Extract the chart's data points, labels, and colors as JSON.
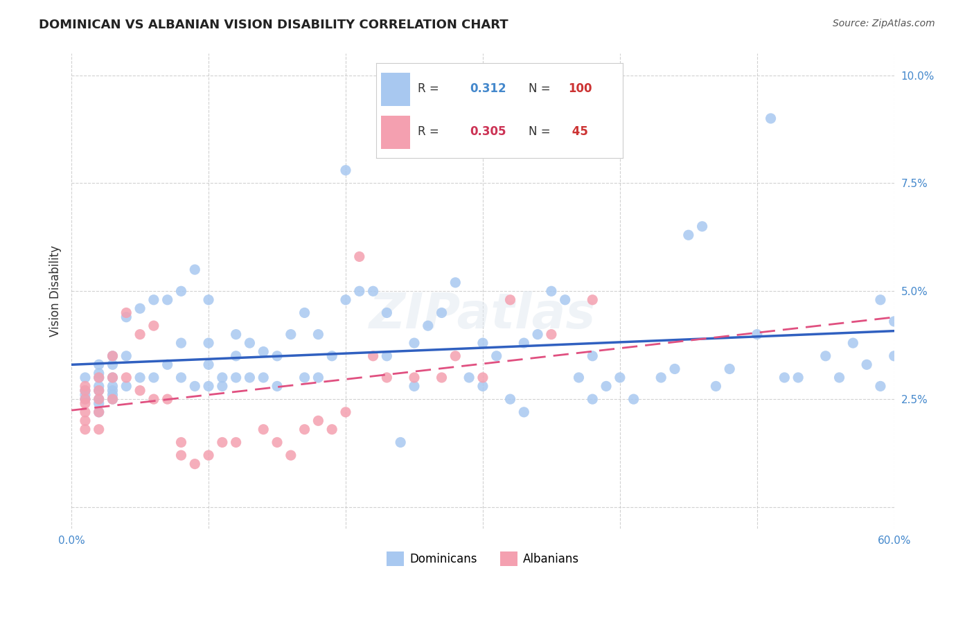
{
  "title": "DOMINICAN VS ALBANIAN VISION DISABILITY CORRELATION CHART",
  "source": "Source: ZipAtlas.com",
  "ylabel": "Vision Disability",
  "xlabel": "",
  "xlim": [
    0.0,
    0.6
  ],
  "ylim": [
    -0.005,
    0.105
  ],
  "yticks": [
    0.0,
    0.025,
    0.05,
    0.075,
    0.1
  ],
  "ytick_labels": [
    "",
    "2.5%",
    "5.0%",
    "7.5%",
    "10.0%"
  ],
  "xticks": [
    0.0,
    0.1,
    0.2,
    0.3,
    0.4,
    0.5,
    0.6
  ],
  "xtick_labels": [
    "0.0%",
    "",
    "",
    "",
    "",
    "",
    "60.0%"
  ],
  "dominican_color": "#a8c8f0",
  "albanian_color": "#f4a0b0",
  "trend_dominican_color": "#3060c0",
  "trend_albanian_color": "#e05080",
  "background_color": "#ffffff",
  "grid_color": "#cccccc",
  "R_dominican": "0.312",
  "N_dominican": "100",
  "R_albanian": "0.305",
  "N_albanian": "45",
  "dominican_x": [
    0.01,
    0.01,
    0.01,
    0.01,
    0.02,
    0.02,
    0.02,
    0.02,
    0.02,
    0.02,
    0.02,
    0.02,
    0.03,
    0.03,
    0.03,
    0.03,
    0.03,
    0.03,
    0.03,
    0.04,
    0.04,
    0.04,
    0.05,
    0.05,
    0.06,
    0.06,
    0.07,
    0.07,
    0.08,
    0.08,
    0.08,
    0.09,
    0.09,
    0.1,
    0.1,
    0.1,
    0.1,
    0.11,
    0.11,
    0.12,
    0.12,
    0.12,
    0.13,
    0.13,
    0.14,
    0.14,
    0.15,
    0.15,
    0.16,
    0.17,
    0.17,
    0.18,
    0.18,
    0.19,
    0.2,
    0.2,
    0.21,
    0.22,
    0.23,
    0.23,
    0.24,
    0.25,
    0.25,
    0.26,
    0.27,
    0.28,
    0.29,
    0.3,
    0.3,
    0.31,
    0.32,
    0.33,
    0.33,
    0.34,
    0.35,
    0.36,
    0.37,
    0.38,
    0.38,
    0.39,
    0.4,
    0.41,
    0.43,
    0.44,
    0.45,
    0.46,
    0.47,
    0.48,
    0.5,
    0.51,
    0.52,
    0.53,
    0.55,
    0.56,
    0.57,
    0.58,
    0.59,
    0.59,
    0.6,
    0.6
  ],
  "dominican_y": [
    0.03,
    0.027,
    0.026,
    0.025,
    0.033,
    0.031,
    0.03,
    0.028,
    0.027,
    0.025,
    0.024,
    0.022,
    0.035,
    0.033,
    0.03,
    0.028,
    0.027,
    0.026,
    0.025,
    0.044,
    0.035,
    0.028,
    0.046,
    0.03,
    0.048,
    0.03,
    0.048,
    0.033,
    0.05,
    0.038,
    0.03,
    0.055,
    0.028,
    0.048,
    0.038,
    0.033,
    0.028,
    0.03,
    0.028,
    0.04,
    0.035,
    0.03,
    0.038,
    0.03,
    0.036,
    0.03,
    0.035,
    0.028,
    0.04,
    0.045,
    0.03,
    0.04,
    0.03,
    0.035,
    0.078,
    0.048,
    0.05,
    0.05,
    0.045,
    0.035,
    0.015,
    0.038,
    0.028,
    0.042,
    0.045,
    0.052,
    0.03,
    0.038,
    0.028,
    0.035,
    0.025,
    0.022,
    0.038,
    0.04,
    0.05,
    0.048,
    0.03,
    0.035,
    0.025,
    0.028,
    0.03,
    0.025,
    0.03,
    0.032,
    0.063,
    0.065,
    0.028,
    0.032,
    0.04,
    0.09,
    0.03,
    0.03,
    0.035,
    0.03,
    0.038,
    0.033,
    0.028,
    0.048,
    0.035,
    0.043
  ],
  "albanian_x": [
    0.01,
    0.01,
    0.01,
    0.01,
    0.01,
    0.01,
    0.01,
    0.02,
    0.02,
    0.02,
    0.02,
    0.02,
    0.03,
    0.03,
    0.03,
    0.04,
    0.04,
    0.05,
    0.05,
    0.06,
    0.06,
    0.07,
    0.08,
    0.08,
    0.09,
    0.1,
    0.11,
    0.12,
    0.14,
    0.15,
    0.16,
    0.17,
    0.18,
    0.19,
    0.2,
    0.21,
    0.22,
    0.23,
    0.25,
    0.27,
    0.28,
    0.3,
    0.32,
    0.35,
    0.38
  ],
  "albanian_y": [
    0.02,
    0.022,
    0.025,
    0.027,
    0.028,
    0.024,
    0.018,
    0.03,
    0.027,
    0.025,
    0.022,
    0.018,
    0.035,
    0.03,
    0.025,
    0.045,
    0.03,
    0.04,
    0.027,
    0.042,
    0.025,
    0.025,
    0.015,
    0.012,
    0.01,
    0.012,
    0.015,
    0.015,
    0.018,
    0.015,
    0.012,
    0.018,
    0.02,
    0.018,
    0.022,
    0.058,
    0.035,
    0.03,
    0.03,
    0.03,
    0.035,
    0.03,
    0.048,
    0.04,
    0.048
  ]
}
